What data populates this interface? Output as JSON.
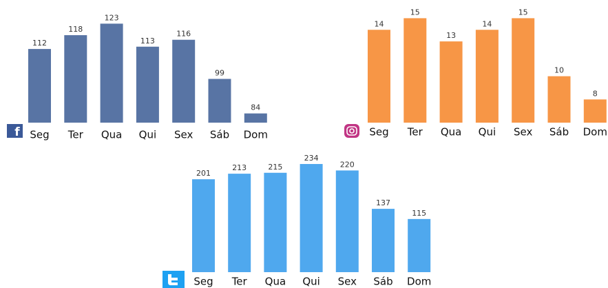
{
  "chart_data": [
    {
      "type": "bar",
      "categories": [
        "Seg",
        "Ter",
        "Qua",
        "Qui",
        "Sex",
        "Sáb",
        "Dom"
      ],
      "values": [
        112,
        118,
        123,
        113,
        116,
        99,
        84
      ],
      "color": "#5874a4",
      "ylim": [
        80,
        124
      ]
    },
    {
      "type": "bar",
      "categories": [
        "Seg",
        "Ter",
        "Qua",
        "Qui",
        "Sex",
        "Sáb",
        "Dom"
      ],
      "values": [
        14,
        15,
        13,
        14,
        15,
        10,
        8
      ],
      "color": "#f79646",
      "ylim": [
        6,
        15.5
      ]
    },
    {
      "type": "bar",
      "categories": [
        "Seg",
        "Ter",
        "Qua",
        "Qui",
        "Sex",
        "Sáb",
        "Dom"
      ],
      "values": [
        201,
        213,
        215,
        234,
        220,
        137,
        115
      ],
      "color": "#4fa8ee",
      "ylim": [
        0,
        240
      ]
    }
  ]
}
